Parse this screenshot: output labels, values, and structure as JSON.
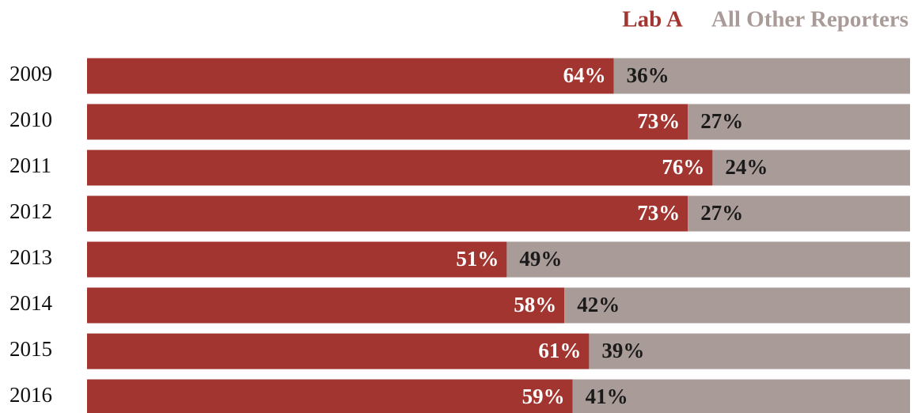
{
  "chart_data": {
    "type": "bar",
    "orientation": "horizontal",
    "stacked": true,
    "legend": "top-right",
    "categories": [
      "2009",
      "2010",
      "2011",
      "2012",
      "2013",
      "2014",
      "2015",
      "2016"
    ],
    "series": [
      {
        "name": "Lab A",
        "color": "#a23530",
        "values": [
          64,
          73,
          76,
          73,
          51,
          58,
          61,
          59
        ],
        "value_labels": [
          "64%",
          "73%",
          "76%",
          "73%",
          "51%",
          "58%",
          "61%",
          "59%"
        ]
      },
      {
        "name": "All Other Reporters",
        "color": "#a89b98",
        "values": [
          36,
          27,
          24,
          27,
          49,
          42,
          39,
          41
        ],
        "value_labels": [
          "36%",
          "27%",
          "24%",
          "27%",
          "49%",
          "42%",
          "39%",
          "41%"
        ]
      }
    ]
  }
}
